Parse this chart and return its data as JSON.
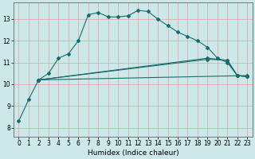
{
  "xlabel": "Humidex (Indice chaleur)",
  "bg_color": "#cce8e8",
  "grid_color": "#e8a0a0",
  "line_color": "#1a6b6b",
  "xlim": [
    -0.5,
    23.5
  ],
  "ylim": [
    7.6,
    13.75
  ],
  "xticks": [
    0,
    1,
    2,
    3,
    4,
    5,
    6,
    7,
    8,
    9,
    10,
    11,
    12,
    13,
    14,
    15,
    16,
    17,
    18,
    19,
    20,
    21,
    22,
    23
  ],
  "yticks": [
    8,
    9,
    10,
    11,
    12,
    13
  ],
  "series1_x": [
    0,
    1,
    2,
    3,
    4,
    5,
    6,
    7,
    8,
    9,
    10,
    11,
    12,
    13,
    14,
    15,
    16,
    17,
    18,
    19,
    20,
    21,
    22,
    23
  ],
  "series1_y": [
    8.3,
    9.3,
    10.2,
    10.5,
    11.2,
    11.4,
    12.0,
    13.2,
    13.3,
    13.1,
    13.1,
    13.15,
    13.4,
    13.35,
    13.0,
    12.7,
    12.4,
    12.2,
    12.0,
    11.7,
    11.2,
    11.0,
    10.4,
    10.35
  ],
  "series2_x": [
    2,
    23
  ],
  "series2_y": [
    10.2,
    10.4
  ],
  "series3_x": [
    2,
    19,
    21,
    22,
    23
  ],
  "series3_y": [
    10.2,
    11.15,
    11.1,
    10.4,
    10.35
  ],
  "series4_x": [
    2,
    19,
    21,
    22,
    23
  ],
  "series4_y": [
    10.2,
    11.2,
    11.1,
    10.4,
    10.35
  ]
}
